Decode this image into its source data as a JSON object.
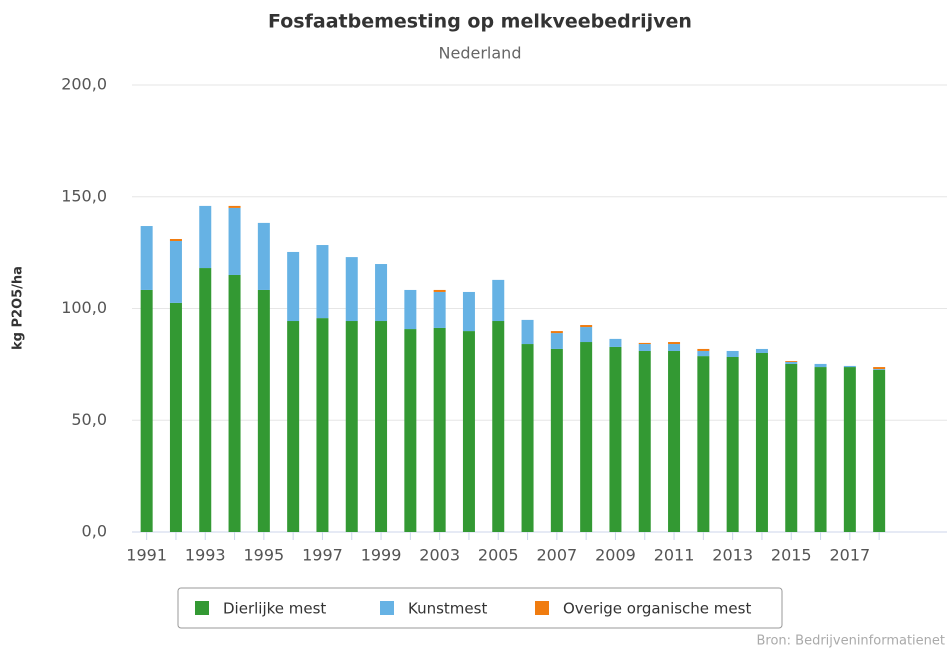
{
  "chart_data": {
    "type": "stacked_bar",
    "title": "Fosfaatbemesting op melkveebedrijven",
    "subtitle": "Nederland",
    "y_label": "kg P2O5/ha",
    "source": "Bron: Bedrijveninformatienet",
    "categories": [
      "1991",
      null,
      "1993",
      null,
      "1995",
      null,
      "1997",
      null,
      "1999",
      null,
      "2003",
      null,
      "2005",
      null,
      "2007",
      null,
      "2009",
      null,
      "2011",
      null,
      "2013",
      null,
      "2015",
      null,
      "2017",
      null
    ],
    "series": [
      {
        "name": "Dierlijke mest",
        "color": "#339933",
        "values": [
          108.3,
          102.5,
          118.1,
          115,
          108.3,
          94.4,
          95.7,
          94.4,
          94.4,
          90.8,
          91.3,
          89.9,
          94.4,
          84.1,
          81.9,
          85,
          82.8,
          81,
          81,
          78.7,
          78.3,
          80.1,
          75.2,
          73.8,
          73.8,
          72.5
        ]
      },
      {
        "name": "Kunstmest",
        "color": "#66b2e4",
        "values": [
          28.6,
          27.7,
          27.8,
          30,
          30,
          30.9,
          32.7,
          28.6,
          25.5,
          17.5,
          16.1,
          17.5,
          18.4,
          10.8,
          7.1,
          6.7,
          3.6,
          3.1,
          3.1,
          2.3,
          2.7,
          1.8,
          0.9,
          1.4,
          0.5,
          0.4
        ]
      },
      {
        "name": "Overige organische mest",
        "color": "#f07c10",
        "values": [
          0,
          0.9,
          0,
          0.9,
          0,
          0,
          0,
          0,
          0,
          0,
          0.9,
          0,
          0,
          0,
          0.9,
          0.9,
          0,
          0.5,
          0.9,
          0.9,
          0,
          0,
          0.4,
          0,
          0,
          0.9
        ]
      }
    ],
    "ylim": [
      0,
      200
    ],
    "yticks": [
      {
        "value": 0,
        "label": "0,0"
      },
      {
        "value": 50,
        "label": "50,0"
      },
      {
        "value": 100,
        "label": "100,0"
      },
      {
        "value": 150,
        "label": "150,0"
      },
      {
        "value": 200,
        "label": "200,0"
      }
    ],
    "grid": true
  }
}
